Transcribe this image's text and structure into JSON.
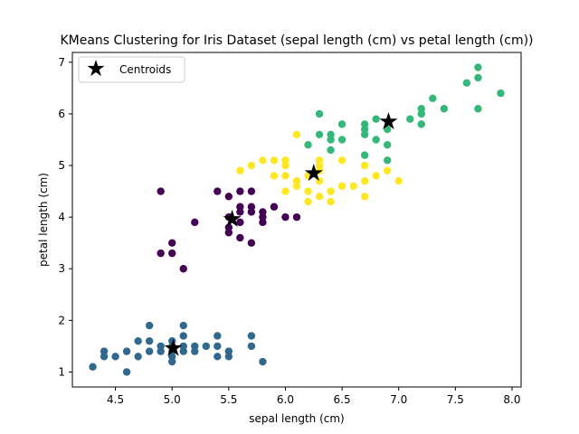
{
  "chart_data": {
    "type": "scatter",
    "title": "KMeans Clustering for Iris Dataset (sepal length (cm) vs petal length (cm))",
    "xlabel": "sepal length (cm)",
    "ylabel": "petal length (cm)",
    "xlim": [
      4.12,
      8.08
    ],
    "ylim": [
      0.71,
      7.19
    ],
    "xticks": [
      "4.5",
      "5.0",
      "5.5",
      "6.0",
      "6.5",
      "7.0",
      "7.5",
      "8.0"
    ],
    "xtick_values": [
      4.5,
      5.0,
      5.5,
      6.0,
      6.5,
      7.0,
      7.5,
      8.0
    ],
    "yticks": [
      "1",
      "2",
      "3",
      "4",
      "5",
      "6",
      "7"
    ],
    "ytick_values": [
      1,
      2,
      3,
      4,
      5,
      6,
      7
    ],
    "grid": false,
    "legend": {
      "placement": "upper-left",
      "entries": [
        {
          "label": "Centroids",
          "marker": "star",
          "color": "#000000"
        }
      ]
    },
    "clusters": [
      {
        "color": "#30688e",
        "points": [
          [
            4.3,
            1.1
          ],
          [
            4.4,
            1.3
          ],
          [
            4.4,
            1.4
          ],
          [
            4.5,
            1.3
          ],
          [
            4.6,
            1.0
          ],
          [
            4.6,
            1.4
          ],
          [
            4.7,
            1.3
          ],
          [
            4.7,
            1.6
          ],
          [
            4.8,
            1.4
          ],
          [
            4.8,
            1.6
          ],
          [
            4.8,
            1.9
          ],
          [
            4.9,
            1.4
          ],
          [
            4.9,
            1.5
          ],
          [
            5.0,
            1.2
          ],
          [
            5.0,
            1.3
          ],
          [
            5.0,
            1.4
          ],
          [
            5.0,
            1.5
          ],
          [
            5.0,
            1.6
          ],
          [
            5.1,
            1.4
          ],
          [
            5.1,
            1.5
          ],
          [
            5.1,
            1.7
          ],
          [
            5.1,
            1.9
          ],
          [
            5.2,
            1.4
          ],
          [
            5.2,
            1.5
          ],
          [
            5.3,
            1.5
          ],
          [
            5.4,
            1.3
          ],
          [
            5.4,
            1.5
          ],
          [
            5.4,
            1.7
          ],
          [
            5.5,
            1.3
          ],
          [
            5.5,
            1.4
          ],
          [
            5.7,
            1.5
          ],
          [
            5.7,
            1.7
          ],
          [
            5.8,
            1.2
          ]
        ]
      },
      {
        "color": "#440154",
        "points": [
          [
            4.9,
            3.3
          ],
          [
            4.9,
            4.5
          ],
          [
            5.0,
            3.3
          ],
          [
            5.0,
            3.5
          ],
          [
            5.1,
            3.0
          ],
          [
            5.2,
            3.9
          ],
          [
            5.4,
            4.5
          ],
          [
            5.5,
            3.7
          ],
          [
            5.5,
            3.8
          ],
          [
            5.5,
            4.0
          ],
          [
            5.5,
            4.4
          ],
          [
            5.6,
            3.6
          ],
          [
            5.6,
            3.9
          ],
          [
            5.6,
            4.1
          ],
          [
            5.6,
            4.2
          ],
          [
            5.6,
            4.5
          ],
          [
            5.7,
            3.5
          ],
          [
            5.7,
            4.1
          ],
          [
            5.7,
            4.2
          ],
          [
            5.7,
            4.5
          ],
          [
            5.8,
            3.9
          ],
          [
            5.8,
            4.0
          ],
          [
            5.8,
            4.1
          ],
          [
            5.9,
            4.2
          ],
          [
            6.0,
            4.0
          ],
          [
            6.1,
            4.0
          ]
        ]
      },
      {
        "color": "#fde725",
        "points": [
          [
            5.6,
            4.9
          ],
          [
            5.7,
            5.0
          ],
          [
            5.8,
            5.1
          ],
          [
            5.9,
            4.8
          ],
          [
            5.9,
            5.1
          ],
          [
            6.0,
            4.5
          ],
          [
            6.0,
            4.8
          ],
          [
            6.0,
            5.0
          ],
          [
            6.0,
            5.1
          ],
          [
            6.1,
            4.6
          ],
          [
            6.1,
            4.7
          ],
          [
            6.1,
            5.6
          ],
          [
            6.2,
            4.3
          ],
          [
            6.2,
            4.5
          ],
          [
            6.2,
            4.8
          ],
          [
            6.3,
            4.4
          ],
          [
            6.3,
            4.7
          ],
          [
            6.3,
            4.9
          ],
          [
            6.3,
            5.0
          ],
          [
            6.3,
            5.1
          ],
          [
            6.4,
            4.3
          ],
          [
            6.4,
            4.5
          ],
          [
            6.5,
            4.6
          ],
          [
            6.5,
            5.1
          ],
          [
            6.6,
            4.6
          ],
          [
            6.7,
            4.4
          ],
          [
            6.7,
            4.7
          ],
          [
            6.7,
            5.0
          ],
          [
            6.8,
            4.8
          ],
          [
            6.9,
            4.9
          ],
          [
            7.0,
            4.7
          ]
        ]
      },
      {
        "color": "#35b779",
        "points": [
          [
            6.2,
            5.4
          ],
          [
            6.3,
            5.6
          ],
          [
            6.3,
            6.0
          ],
          [
            6.4,
            5.3
          ],
          [
            6.4,
            5.5
          ],
          [
            6.4,
            5.6
          ],
          [
            6.5,
            5.5
          ],
          [
            6.5,
            5.8
          ],
          [
            6.7,
            5.2
          ],
          [
            6.7,
            5.6
          ],
          [
            6.7,
            5.7
          ],
          [
            6.7,
            5.8
          ],
          [
            6.8,
            5.5
          ],
          [
            6.8,
            5.9
          ],
          [
            6.9,
            5.1
          ],
          [
            6.9,
            5.4
          ],
          [
            6.9,
            5.7
          ],
          [
            7.1,
            5.9
          ],
          [
            7.2,
            5.8
          ],
          [
            7.2,
            6.0
          ],
          [
            7.2,
            6.1
          ],
          [
            7.3,
            6.3
          ],
          [
            7.4,
            6.1
          ],
          [
            7.6,
            6.6
          ],
          [
            7.7,
            6.1
          ],
          [
            7.7,
            6.7
          ],
          [
            7.7,
            6.9
          ],
          [
            7.9,
            6.4
          ]
        ]
      }
    ],
    "centroids": [
      [
        5.01,
        1.46
      ],
      [
        5.53,
        3.96
      ],
      [
        6.25,
        4.85
      ],
      [
        6.91,
        5.85
      ]
    ]
  }
}
